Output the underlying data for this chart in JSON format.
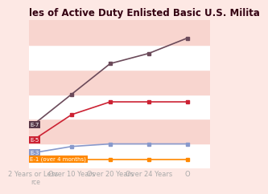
{
  "title": "les of Active Duty Enlisted Basic U.S. Milita",
  "background_color": "#fde8e4",
  "stripe_colors": [
    "#ffffff",
    "#f8d5cf"
  ],
  "x_labels": [
    "2 Years or Less",
    "Over 10 Years",
    "Over 20 Years",
    "Over 24 Years",
    "O"
  ],
  "x_values": [
    0,
    1,
    2,
    3,
    4
  ],
  "series": [
    {
      "label": "E-7",
      "color": "#6b4a5a",
      "data": [
        3.1,
        4.3,
        5.5,
        5.9,
        6.5
      ],
      "label_bg": "#5a3a4a",
      "label_fg": "#ffffff"
    },
    {
      "label": "E-5",
      "color": "#cc2233",
      "data": [
        2.5,
        3.5,
        4.0,
        4.0,
        4.0
      ],
      "label_bg": "#cc2233",
      "label_fg": "#ffffff"
    },
    {
      "label": "E-3",
      "color": "#8899cc",
      "data": [
        2.0,
        2.25,
        2.35,
        2.35,
        2.35
      ],
      "label_bg": "#8899cc",
      "label_fg": "#ffffff"
    },
    {
      "label": "E-1 (over 4 months)",
      "color": "#ff8800",
      "data": [
        1.75,
        1.75,
        1.75,
        1.75,
        1.75
      ],
      "label_bg": "#ff8800",
      "label_fg": "#ffffff"
    }
  ],
  "source_text": "rce",
  "title_color": "#330011",
  "axis_label_color": "#aaaaaa",
  "title_fontsize": 8.5,
  "tick_fontsize": 6.0,
  "ylim": [
    1.4,
    7.2
  ],
  "num_stripes": 6
}
